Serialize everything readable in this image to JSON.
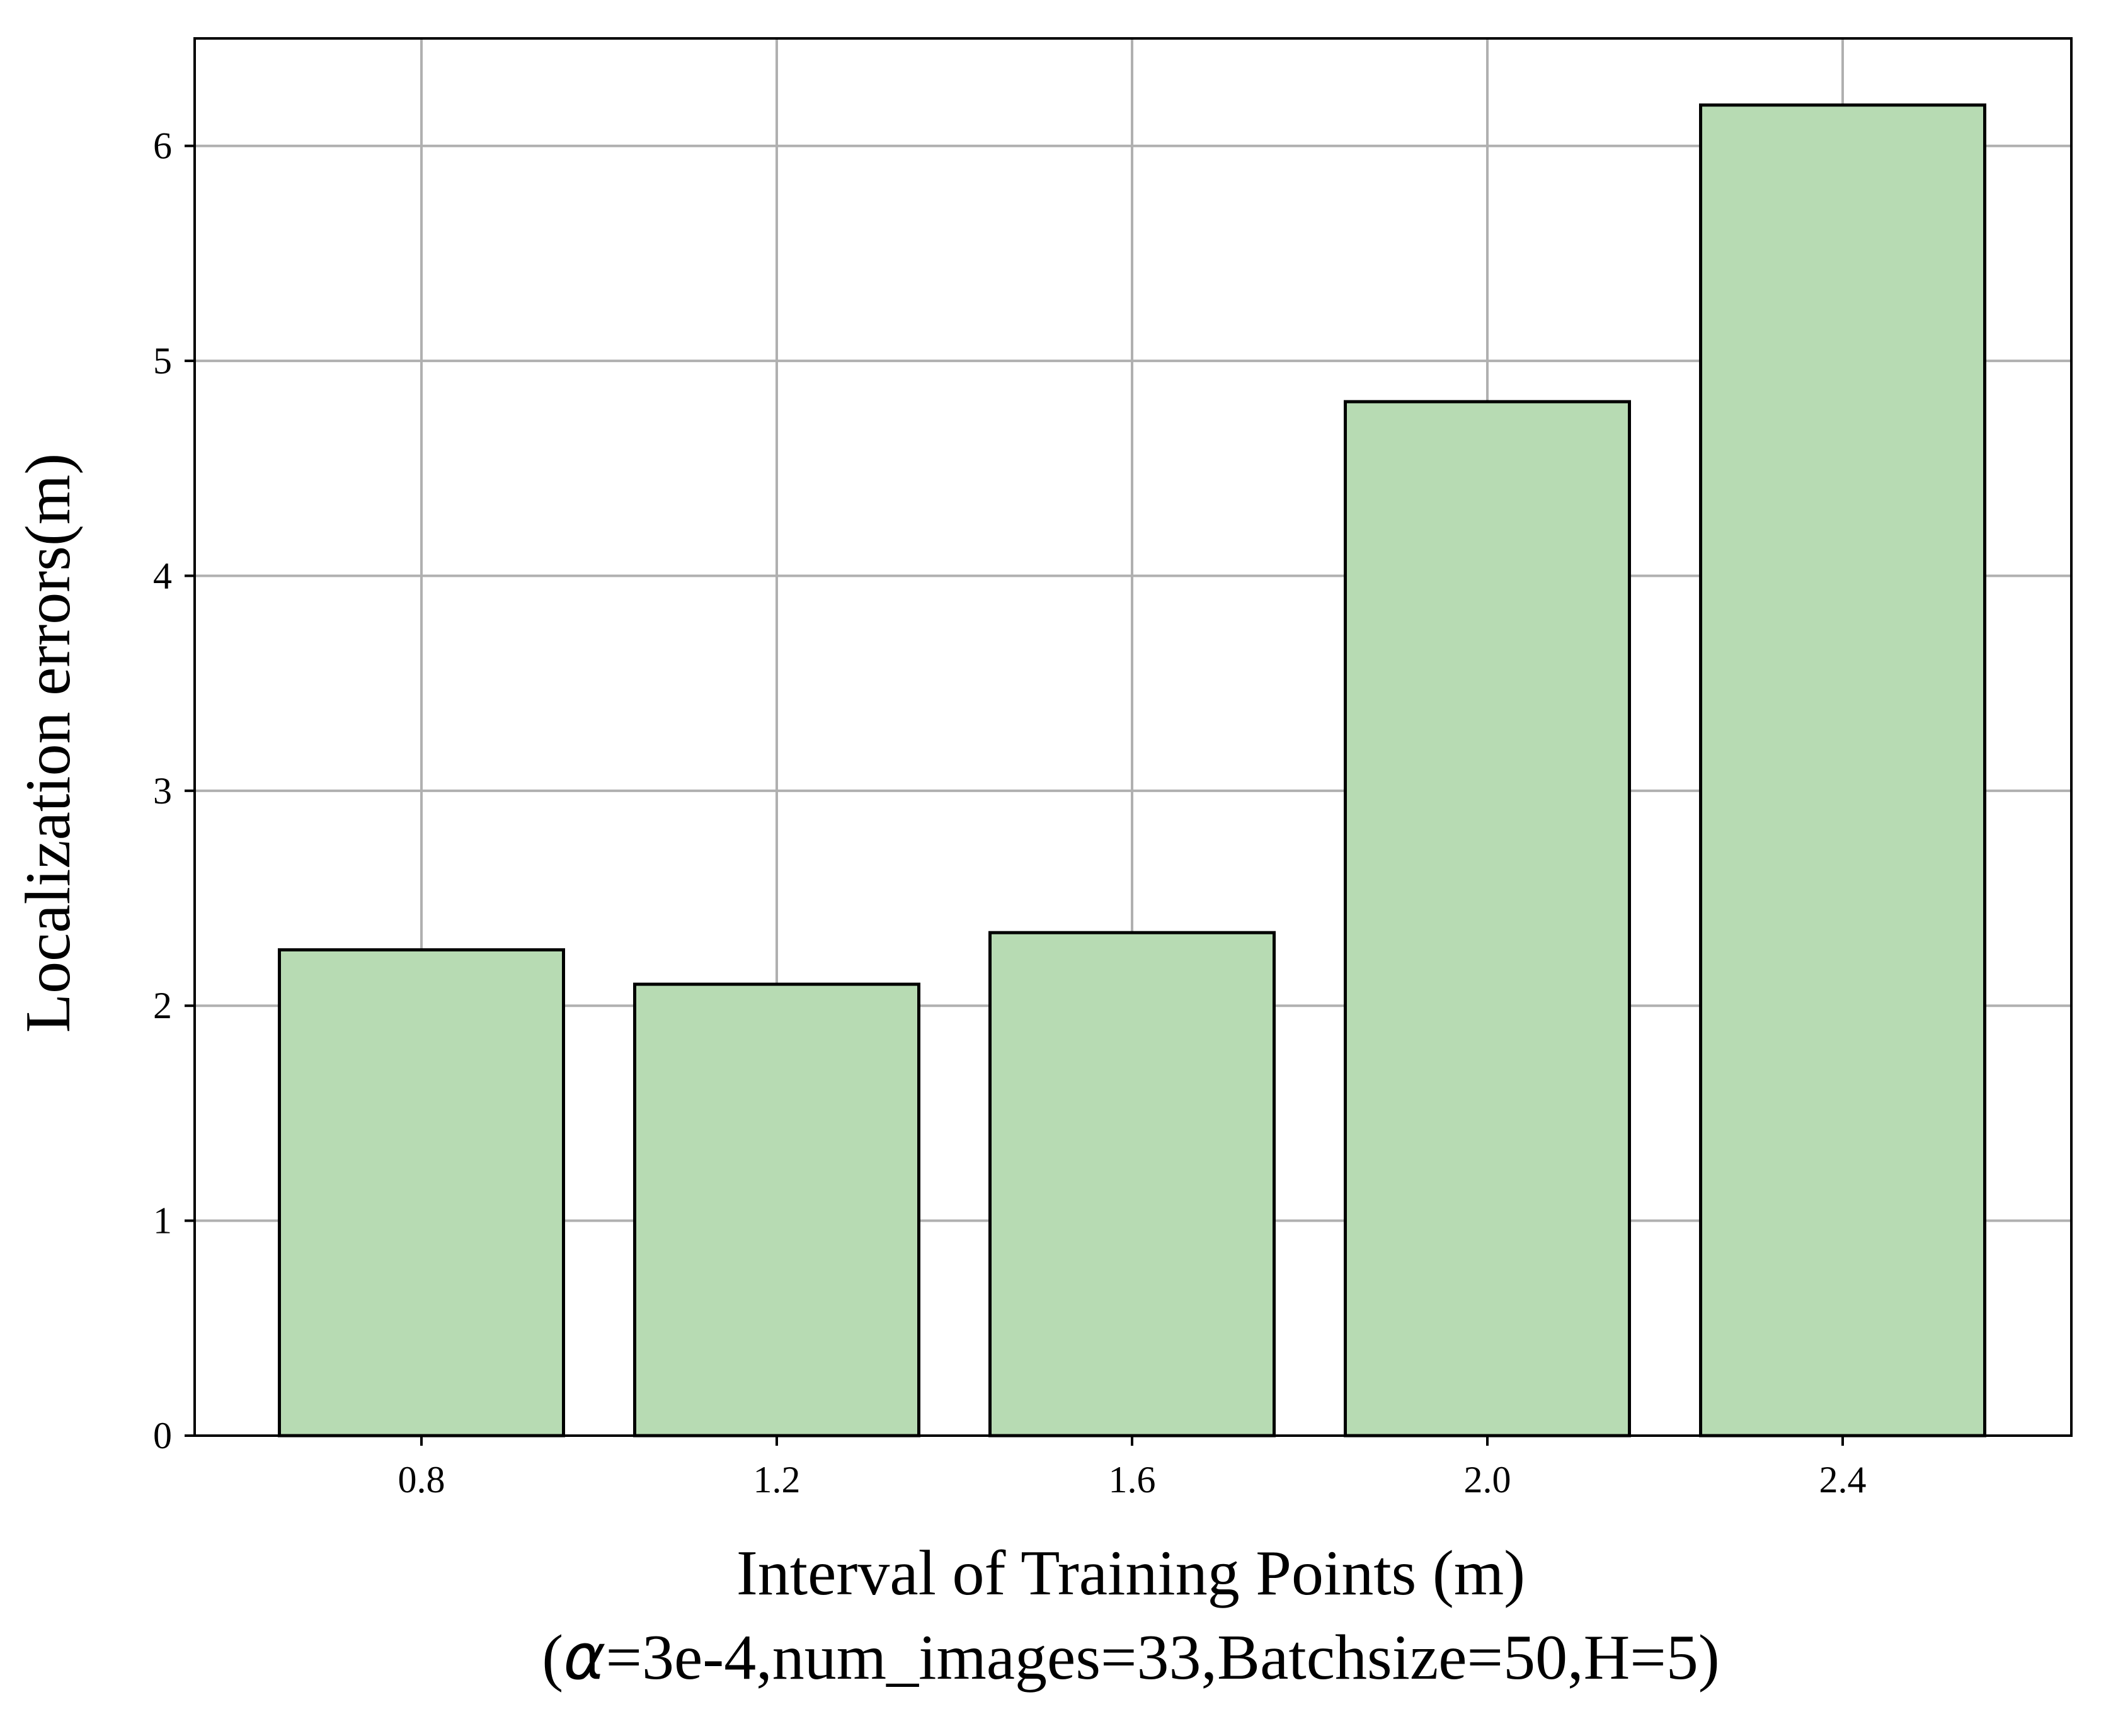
{
  "chart_data": {
    "type": "bar",
    "categories": [
      "0.8",
      "1.2",
      "1.6",
      "2.0",
      "2.4"
    ],
    "values": [
      2.26,
      2.1,
      2.34,
      4.81,
      6.19
    ],
    "xlabel": "Interval of Training Points (m)",
    "xlabel_line2": {
      "open": "(",
      "symbol": "α",
      "rest": "=3e-4,num_images=33,Batchsize=50,H=5)"
    },
    "ylabel": "Localization errors(m)",
    "ylim": [
      0,
      6.5
    ],
    "yticks": [
      "0",
      "1",
      "2",
      "3",
      "4",
      "5",
      "6"
    ],
    "grid": true,
    "colors": {
      "bar_fill": "#b7dbb3",
      "bar_edge": "#000000",
      "grid": "#b0b0b0"
    }
  }
}
